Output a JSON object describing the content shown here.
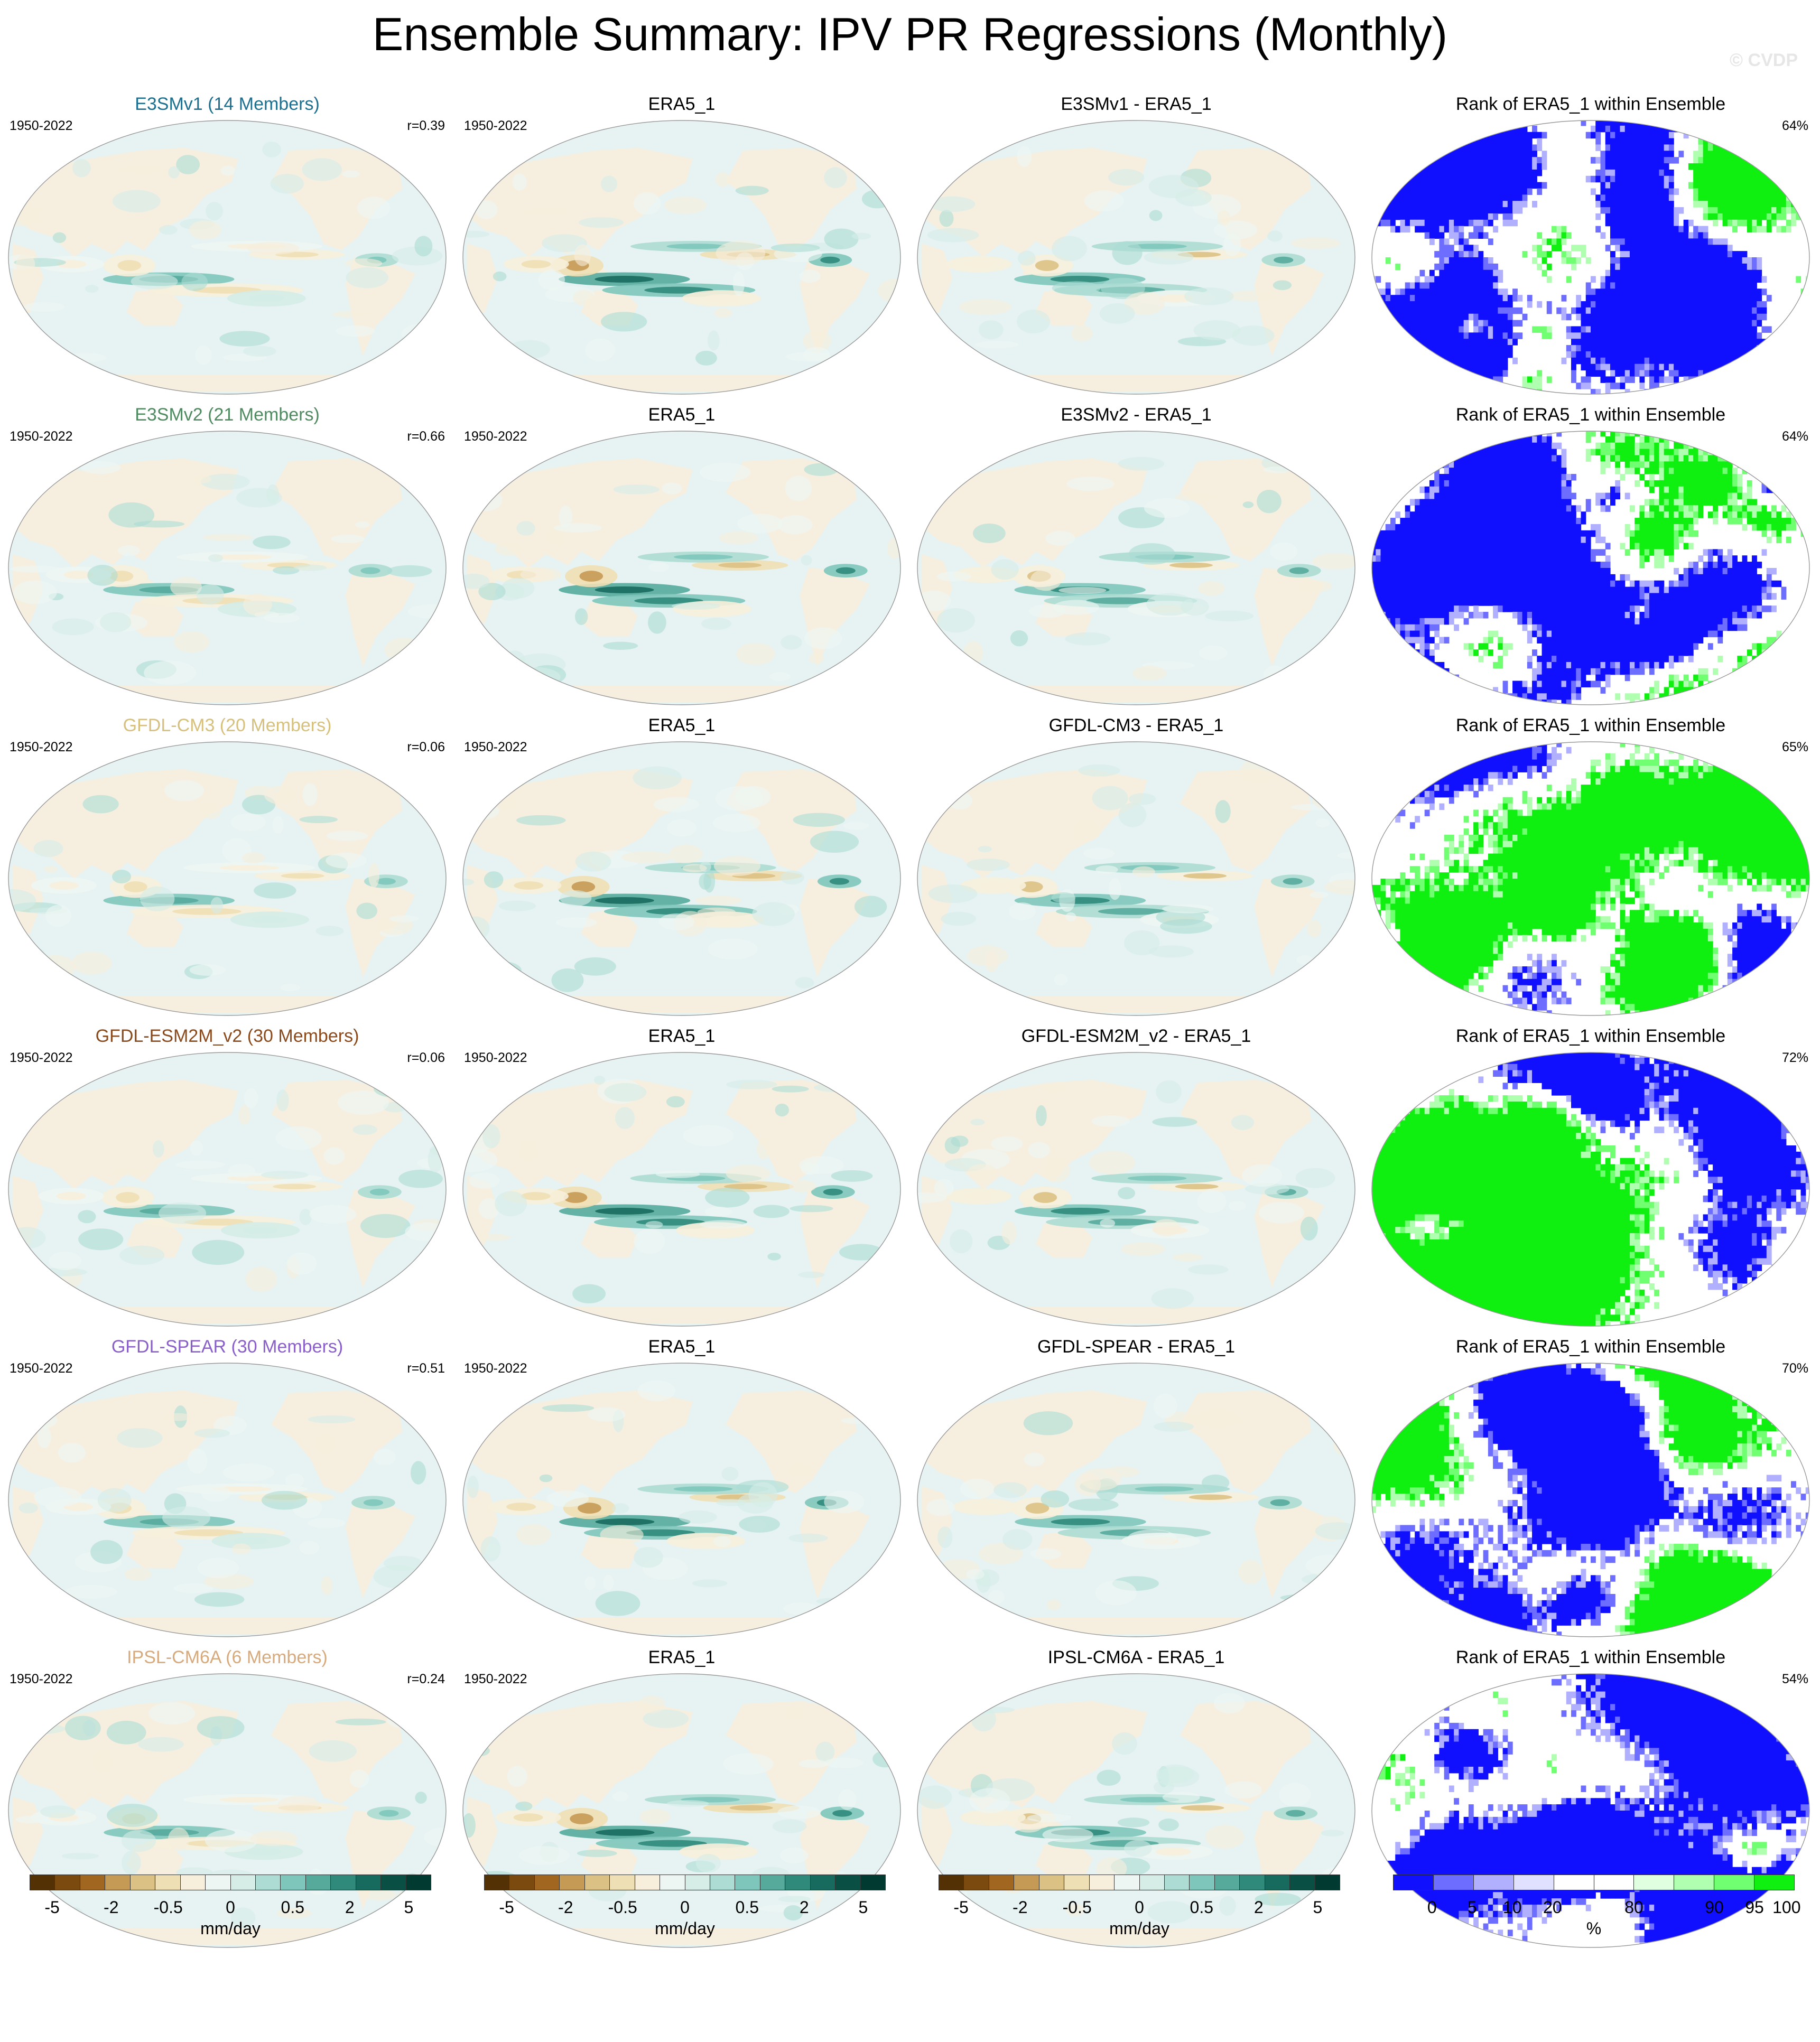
{
  "title": "Ensemble Summary: IPV PR Regressions (Monthly)",
  "copyright": "© CVDP",
  "colors": {
    "diverging": [
      "#543005",
      "#7b4a0f",
      "#a1661f",
      "#c59a55",
      "#dcc184",
      "#efdfb4",
      "#f7efdc",
      "#eef6f3",
      "#d5ece7",
      "#acdcd3",
      "#7ec6bb",
      "#55aa9c",
      "#2f8a7b",
      "#176b5e",
      "#0a4f44",
      "#013a30"
    ],
    "rank": [
      "#1010ff",
      "#6d6dff",
      "#b0b0ff",
      "#e0e0ff",
      "#ffffff",
      "#ffffff",
      "#e0ffe0",
      "#b0ffb0",
      "#70ff70",
      "#10f010"
    ],
    "ocean_base": "#e6f3f2",
    "land_base": "#f6efe0",
    "coast": "#888888"
  },
  "rows": [
    {
      "model_title": "E3SMv1 (14 Members)",
      "model_color": "#1c6f8f",
      "model_years": "1950-2022",
      "correlation": "r=0.39",
      "obs_title": "ERA5_1",
      "obs_years": "1950-2022",
      "diff_title": "E3SMv1 - ERA5_1",
      "rank_title": "Rank of ERA5_1 within Ensemble",
      "rank_pct": "64%"
    },
    {
      "model_title": "E3SMv2 (21 Members)",
      "model_color": "#4f8a60",
      "model_years": "1950-2022",
      "correlation": "r=0.66",
      "obs_title": "ERA5_1",
      "obs_years": "1950-2022",
      "diff_title": "E3SMv2 - ERA5_1",
      "rank_title": "Rank of ERA5_1 within Ensemble",
      "rank_pct": "64%"
    },
    {
      "model_title": "GFDL-CM3 (20 Members)",
      "model_color": "#d6c07c",
      "model_years": "1950-2022",
      "correlation": "r=0.06",
      "obs_title": "ERA5_1",
      "obs_years": "1950-2022",
      "diff_title": "GFDL-CM3 - ERA5_1",
      "rank_title": "Rank of ERA5_1 within Ensemble",
      "rank_pct": "65%"
    },
    {
      "model_title": "GFDL-ESM2M_v2 (30 Members)",
      "model_color": "#8a4a1c",
      "model_years": "1950-2022",
      "correlation": "r=0.06",
      "obs_title": "ERA5_1",
      "obs_years": "1950-2022",
      "diff_title": "GFDL-ESM2M_v2 - ERA5_1",
      "rank_title": "Rank of ERA5_1 within Ensemble",
      "rank_pct": "72%"
    },
    {
      "model_title": "GFDL-SPEAR (30 Members)",
      "model_color": "#8a5fc8",
      "model_years": "1950-2022",
      "correlation": "r=0.51",
      "obs_title": "ERA5_1",
      "obs_years": "1950-2022",
      "diff_title": "GFDL-SPEAR - ERA5_1",
      "rank_title": "Rank of ERA5_1 within Ensemble",
      "rank_pct": "70%"
    },
    {
      "model_title": "IPSL-CM6A (6 Members)",
      "model_color": "#d6aa7c",
      "model_years": "1950-2022",
      "correlation": "r=0.24",
      "obs_title": "ERA5_1",
      "obs_years": "1950-2022",
      "diff_title": "IPSL-CM6A - ERA5_1",
      "rank_title": "Rank of ERA5_1 within Ensemble",
      "rank_pct": "54%"
    }
  ],
  "colorbar_pr": {
    "ticks": [
      "-5",
      "-2",
      "-0.5",
      "0",
      "0.5",
      "2",
      "5"
    ],
    "units": "mm/day"
  },
  "colorbar_rank": {
    "ticks": [
      "0",
      "5",
      "10",
      "20",
      "80",
      "90",
      "95",
      "100"
    ],
    "units": "%"
  }
}
